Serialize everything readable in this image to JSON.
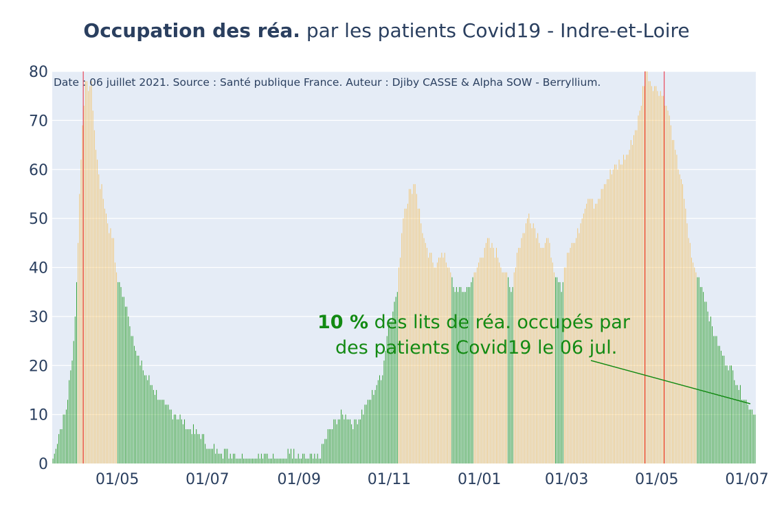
{
  "title": {
    "bold": "Occupation des réa.",
    "rest": " par les patients Covid19 - Indre-et-Loire"
  },
  "colors": {
    "plot_bg": "#e5ecf6",
    "green": "#2e9e2e",
    "orange": "#f3c56f",
    "red_line": "#e8495a",
    "annotation": "#138a13",
    "axis_text": "#2a3f5f"
  },
  "chart_data": {
    "type": "bar",
    "title": "Occupation des réa. par les patients Covid19 - Indre-et-Loire",
    "subtitle": "Date : 06 juillet 2021. Source : Santé publique France. Auteur : Djiby CASSE & Alpha SOW - Berryllium.",
    "x_range": [
      "2020-03-18",
      "2021-07-06"
    ],
    "ylim": [
      0,
      80
    ],
    "y_ticks": [
      0,
      10,
      20,
      30,
      40,
      50,
      60,
      70,
      80
    ],
    "x_ticks": [
      "01/05",
      "01/07",
      "01/09",
      "01/11",
      "01/01",
      "01/03",
      "01/05",
      "01/07"
    ],
    "x_tick_dates": [
      "2020-05-01",
      "2020-07-01",
      "2020-09-01",
      "2020-11-01",
      "2021-01-01",
      "2021-03-01",
      "2021-05-01",
      "2021-07-01"
    ],
    "red_lines": [
      "2020-04-08",
      "2021-04-23",
      "2021-05-06"
    ],
    "grid": true,
    "bar_color_rule": "green: value < 40% of beds (about 39); orange: value ≥ 40% of beds",
    "series_anchors": [
      [
        "2020-03-18",
        1
      ],
      [
        "2020-03-22",
        6
      ],
      [
        "2020-03-27",
        11
      ],
      [
        "2020-03-30",
        19
      ],
      [
        "2020-04-01",
        25
      ],
      [
        "2020-04-03",
        37
      ],
      [
        "2020-04-05",
        55
      ],
      [
        "2020-04-07",
        70
      ],
      [
        "2020-04-09",
        77
      ],
      [
        "2020-04-13",
        77
      ],
      [
        "2020-04-16",
        64
      ],
      [
        "2020-04-19",
        57
      ],
      [
        "2020-04-22",
        53
      ],
      [
        "2020-04-25",
        48
      ],
      [
        "2020-04-28",
        46
      ],
      [
        "2020-04-30",
        38
      ],
      [
        "2020-05-04",
        35
      ],
      [
        "2020-05-10",
        27
      ],
      [
        "2020-05-16",
        20
      ],
      [
        "2020-05-22",
        17
      ],
      [
        "2020-05-31",
        12
      ],
      [
        "2020-06-09",
        10
      ],
      [
        "2020-06-19",
        7
      ],
      [
        "2020-06-26",
        6
      ],
      [
        "2020-07-02",
        3
      ],
      [
        "2020-07-20",
        2
      ],
      [
        "2020-07-25",
        1
      ],
      [
        "2020-08-06",
        1
      ],
      [
        "2020-08-10",
        2
      ],
      [
        "2020-08-13",
        1
      ],
      [
        "2020-08-23",
        1
      ],
      [
        "2020-08-26",
        3
      ],
      [
        "2020-08-29",
        1
      ],
      [
        "2020-09-14",
        1
      ],
      [
        "2020-09-20",
        6
      ],
      [
        "2020-09-26",
        9
      ],
      [
        "2020-10-02",
        10
      ],
      [
        "2020-10-08",
        8
      ],
      [
        "2020-10-16",
        12
      ],
      [
        "2020-10-22",
        15
      ],
      [
        "2020-10-27",
        19
      ],
      [
        "2020-10-31",
        28
      ],
      [
        "2020-11-06",
        35
      ],
      [
        "2020-11-10",
        51
      ],
      [
        "2020-11-14",
        55
      ],
      [
        "2020-11-18",
        57
      ],
      [
        "2020-11-22",
        49
      ],
      [
        "2020-11-26",
        43
      ],
      [
        "2020-12-02",
        41
      ],
      [
        "2020-12-08",
        43
      ],
      [
        "2020-12-14",
        36
      ],
      [
        "2020-12-22",
        35
      ],
      [
        "2020-12-28",
        38
      ],
      [
        "2021-01-01",
        42
      ],
      [
        "2021-01-06",
        45
      ],
      [
        "2021-01-12",
        43
      ],
      [
        "2021-01-18",
        39
      ],
      [
        "2021-01-22",
        35
      ],
      [
        "2021-01-26",
        43
      ],
      [
        "2021-01-30",
        47
      ],
      [
        "2021-02-03",
        51
      ],
      [
        "2021-02-08",
        47
      ],
      [
        "2021-02-12",
        44
      ],
      [
        "2021-02-17",
        46
      ],
      [
        "2021-02-20",
        38
      ],
      [
        "2021-02-25",
        36
      ],
      [
        "2021-03-01",
        43
      ],
      [
        "2021-03-07",
        46
      ],
      [
        "2021-03-14",
        54
      ],
      [
        "2021-03-20",
        53
      ],
      [
        "2021-03-24",
        56
      ],
      [
        "2021-03-30",
        59
      ],
      [
        "2021-04-05",
        61
      ],
      [
        "2021-04-12",
        64
      ],
      [
        "2021-04-18",
        70
      ],
      [
        "2021-04-23",
        80
      ],
      [
        "2021-04-28",
        77
      ],
      [
        "2021-05-03",
        76
      ],
      [
        "2021-05-08",
        72
      ],
      [
        "2021-05-12",
        65
      ],
      [
        "2021-05-17",
        58
      ],
      [
        "2021-05-21",
        49
      ],
      [
        "2021-05-25",
        40
      ],
      [
        "2021-05-29",
        38
      ],
      [
        "2021-06-02",
        34
      ],
      [
        "2021-06-08",
        27
      ],
      [
        "2021-06-14",
        22
      ],
      [
        "2021-06-20",
        19
      ],
      [
        "2021-06-26",
        15
      ],
      [
        "2021-07-01",
        12
      ],
      [
        "2021-07-06",
        10
      ]
    ],
    "annotation": {
      "value": "10",
      "unit": " %",
      "line1_rest": " des lits de réa. occupés par",
      "line2": "des patients Covid19 le 06 jul."
    }
  }
}
